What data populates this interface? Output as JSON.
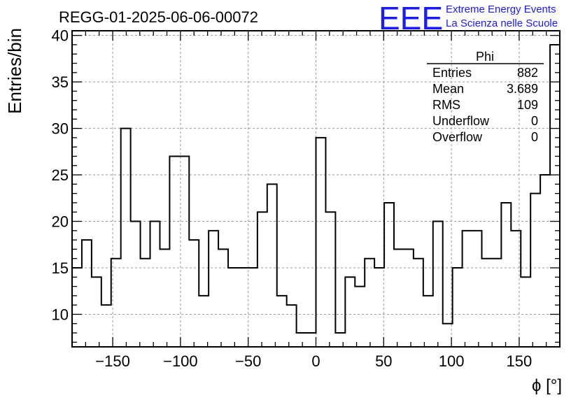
{
  "chart_data": {
    "type": "histogram",
    "title": "REGG-01-2025-06-06-00072",
    "xlabel": "ϕ [°]",
    "ylabel": "Entries/bin",
    "xlim": [
      -180,
      180
    ],
    "ylim": [
      6.5,
      40.5
    ],
    "bin_width": 7.2,
    "bin_edges_start": -180,
    "values": [
      15,
      18,
      14,
      11,
      16,
      30,
      20,
      16,
      20,
      17,
      27,
      27,
      18,
      12,
      19,
      17,
      15,
      15,
      15,
      21,
      24,
      12,
      11,
      8,
      8,
      29,
      21,
      8,
      14,
      13,
      16,
      15,
      22,
      17,
      17,
      16,
      12,
      20,
      9,
      15,
      19,
      19,
      16,
      16,
      22,
      19,
      14,
      23,
      25,
      39
    ],
    "x_ticks": [
      -150,
      -100,
      -50,
      0,
      50,
      100,
      150
    ],
    "x_tick_labels": [
      "−150",
      "−100",
      "−50",
      "0",
      "50",
      "100",
      "150"
    ],
    "y_ticks": [
      10,
      15,
      20,
      25,
      30,
      35,
      40
    ],
    "y_tick_labels": [
      "10",
      "15",
      "20",
      "25",
      "30",
      "35",
      "40"
    ],
    "grid": true,
    "line_color": "#000000",
    "grid_color": "#999999"
  },
  "stats_box": {
    "title": "Phi",
    "rows": [
      {
        "label": "Entries",
        "value": "882"
      },
      {
        "label": "Mean",
        "value": "3.689"
      },
      {
        "label": "RMS",
        "value": "109"
      },
      {
        "label": "Underflow",
        "value": "0"
      },
      {
        "label": "Overflow",
        "value": "0"
      }
    ]
  },
  "logo": {
    "mark": "EEE",
    "line1": "Extreme Energy Events",
    "line2": "La Scienza nelle Scuole",
    "color": "#1a1aff"
  }
}
